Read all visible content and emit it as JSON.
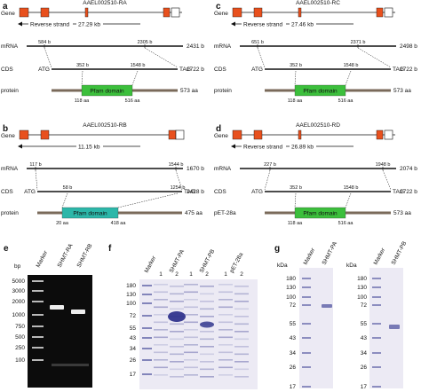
{
  "colors": {
    "exon": "#e8501d",
    "utr": "#ffffff",
    "pfam_green": "#3cbf3c",
    "pfam_teal": "#2cb7a9",
    "gel_bg": "#0c0c0c",
    "band": "#eeeeee",
    "stain": "#2b2f8a",
    "gel_white": "#eceaf4"
  },
  "panels": [
    {
      "label": "a",
      "gene_name": "AAEL002510-RA",
      "gene_label": "Gene",
      "strand_text": "Reverse strand",
      "strand_len": "27.29 kb",
      "mrna": {
        "label": "mRNA",
        "left": "584 b",
        "right": "2305 b",
        "total": "2431 b"
      },
      "cds": {
        "label": "CDS",
        "start": "ATG",
        "stop": "TAG",
        "left": "352 b",
        "right": "1548 b",
        "total": "1722 b"
      },
      "protein": {
        "label": "protein",
        "domain": "Pfam domain",
        "left": "118 aa",
        "right": "516 aa",
        "total": "573 aa",
        "color": "#3cbf3c"
      }
    },
    {
      "label": "b",
      "gene_name": "AAEL002510-RB",
      "gene_label": "Gene",
      "strand_text": "",
      "strand_len": "11.15 kb",
      "mrna": {
        "label": "mRNA",
        "left": "117 b",
        "right": "1544 b",
        "total": "1670 b"
      },
      "cds": {
        "label": "CDS",
        "start": "ATG",
        "stop": "TAG",
        "left": "58 b",
        "right": "1254 b",
        "total": "1428 b"
      },
      "protein": {
        "label": "protein",
        "domain": "Pfam domain",
        "left": "20 aa",
        "right": "418 aa",
        "total": "475 aa",
        "color": "#2cb7a9"
      }
    },
    {
      "label": "c",
      "gene_name": "AAEL002510-RC",
      "gene_label": "Gene",
      "strand_text": "Reverse strand",
      "strand_len": "27.46 kb",
      "mrna": {
        "label": "mRNA",
        "left": "651 b",
        "right": "2371 b",
        "total": "2498 b"
      },
      "cds": {
        "label": "CDS",
        "start": "ATG",
        "stop": "TAG",
        "left": "352 b",
        "right": "1548 b",
        "total": "1722 b"
      },
      "protein": {
        "label": "protein",
        "domain": "Pfam domain",
        "left": "118 aa",
        "right": "516 aa",
        "total": "573 aa",
        "color": "#3cbf3c"
      }
    },
    {
      "label": "d",
      "gene_name": "AAEL002510-RD",
      "gene_label": "Gene",
      "strand_text": "Reverse strand",
      "strand_len": "26.89 kb",
      "mrna": {
        "label": "mRNA",
        "left": "227 b",
        "right": "1948 b",
        "total": "2074 b"
      },
      "cds": {
        "label": "CDS",
        "start": "ATG",
        "stop": "TAG",
        "left": "352 b",
        "right": "1548 b",
        "total": "1722 b"
      },
      "protein": {
        "label": "pET-28a",
        "domain": "Pfam domain",
        "left": "118 aa",
        "right": "516 aa",
        "total": "573 aa",
        "color": "#3cbf3c"
      }
    }
  ],
  "gel_e": {
    "label": "e",
    "unit": "bp",
    "lanes": [
      "Marker",
      "SHMT-RA",
      "SHMT-RB"
    ],
    "ladder": [
      "5000",
      "3000",
      "2000",
      "1000",
      "750",
      "500",
      "250",
      "100"
    ]
  },
  "gel_f": {
    "label": "f",
    "lanes": [
      "Marker",
      "SHMT-PA",
      "SHMT-PB",
      "pET-28a"
    ],
    "sub_lanes": [
      "1",
      "2",
      "1",
      "2",
      "1",
      "2"
    ],
    "unit": "kDa",
    "ladder": [
      "180",
      "130",
      "100",
      "72",
      "55",
      "43",
      "34",
      "26",
      "17"
    ]
  },
  "gel_g": {
    "label": "g",
    "gels": [
      {
        "unit": "kDa",
        "lanes": [
          "Marker",
          "SHMT-PA"
        ],
        "ladder": [
          "180",
          "130",
          "100",
          "72",
          "55",
          "43",
          "34",
          "26",
          "17"
        ]
      },
      {
        "unit": "kDa",
        "lanes": [
          "Marker",
          "SHMT-PB"
        ],
        "ladder": [
          "180",
          "130",
          "100",
          "72",
          "55",
          "43",
          "34",
          "26",
          "17"
        ]
      }
    ]
  }
}
